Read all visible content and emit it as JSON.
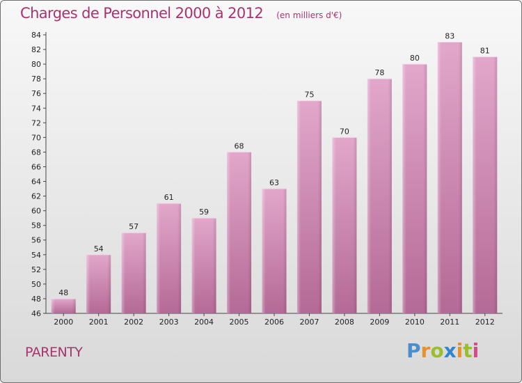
{
  "chart_data": {
    "type": "bar",
    "title": "Charges de Personnel 2000 à 2012",
    "subtitle": "(en milliers d'€)",
    "categories": [
      "2000",
      "2001",
      "2002",
      "2003",
      "2004",
      "2005",
      "2006",
      "2007",
      "2008",
      "2009",
      "2010",
      "2011",
      "2012"
    ],
    "values": [
      48,
      54,
      57,
      61,
      59,
      68,
      63,
      75,
      70,
      78,
      80,
      83,
      81
    ],
    "ylim": [
      46,
      84
    ],
    "yticks": [
      46,
      48,
      50,
      52,
      54,
      56,
      58,
      60,
      62,
      64,
      66,
      68,
      70,
      72,
      74,
      76,
      78,
      80,
      82,
      84
    ],
    "grid": false,
    "bar_color": "#c97aa8"
  },
  "commune": "PARENTY",
  "logo": {
    "text": "Proxiti"
  }
}
